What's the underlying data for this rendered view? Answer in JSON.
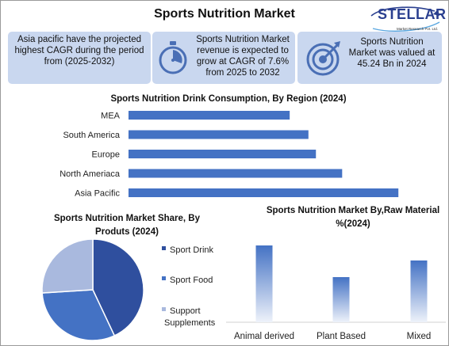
{
  "title": "Sports Nutrition Market",
  "logo": {
    "text": "STELLAR",
    "subtext": "Market Research Pvt. Ltd."
  },
  "info_boxes": [
    {
      "text": "Asia pacific have the projected highest CAGR during the period from (2025-2032)",
      "icon": ""
    },
    {
      "text": "Sports Nutrition Market revenue is expected to grow at CAGR of 7.6% from 2025 to 2032",
      "icon": "stopwatch-icon"
    },
    {
      "text": "Sports Nutrition Market was valued at 45.24 Bn in 2024",
      "icon": "target-icon"
    }
  ],
  "colors": {
    "bar": "#4472c4",
    "pie": [
      "#2f4f9e",
      "#4472c4",
      "#a9b9de"
    ],
    "info_bg": "#c9d7ef"
  },
  "chart_data": [
    {
      "type": "bar",
      "orientation": "horizontal",
      "title": "Sports Nutrition Drink Consumption, By Region (2024)",
      "categories": [
        "MEA",
        "South America",
        "Europe",
        "North Ameriaca",
        "Asia Pacific"
      ],
      "values": [
        43,
        48,
        50,
        57,
        72
      ],
      "xlim": [
        0,
        80
      ],
      "grid": false,
      "legend": "none"
    },
    {
      "type": "pie",
      "title": "Sports Nutrition Market Share, By Produts (2024)",
      "labels": [
        "Sport Drink",
        "Sport Food",
        "Support Supplements"
      ],
      "values": [
        43,
        31,
        26
      ],
      "legend": "right"
    },
    {
      "type": "bar",
      "title": "Sports Nutrition Market By,Raw Material %(2024)",
      "categories": [
        "Animal derived",
        "Plant Based",
        "Mixed"
      ],
      "values": [
        97,
        57,
        78
      ],
      "ylim": [
        0,
        100
      ],
      "grid": false,
      "legend": "none"
    }
  ]
}
